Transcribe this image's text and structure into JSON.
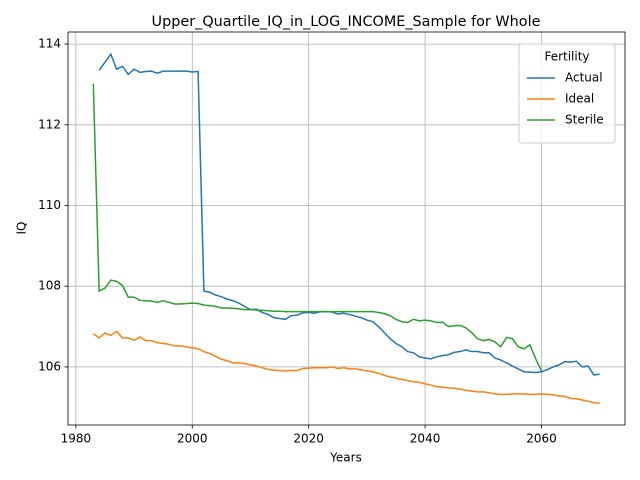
{
  "chart_data": {
    "type": "line",
    "title": "Upper_Quartile_IQ_in_LOG_INCOME_Sample for Whole",
    "x_label": "Years",
    "y_label": "IQ",
    "legend_title": "Fertility",
    "legend": "upper right",
    "grid": true,
    "xlim": [
      1978.65,
      2074.35
    ],
    "ylim": [
      104.56,
      114.3
    ],
    "xticks": [
      1980,
      2000,
      2020,
      2040,
      2060
    ],
    "yticks": [
      106,
      108,
      110,
      112,
      114
    ],
    "x": [
      1983,
      1984,
      1985,
      1986,
      1987,
      1988,
      1989,
      1990,
      1991,
      1992,
      1993,
      1994,
      1995,
      1996,
      1997,
      1998,
      1999,
      2000,
      2001,
      2002,
      2003,
      2004,
      2005,
      2006,
      2007,
      2008,
      2009,
      2010,
      2011,
      2012,
      2013,
      2014,
      2015,
      2016,
      2017,
      2018,
      2019,
      2020,
      2021,
      2022,
      2023,
      2024,
      2025,
      2026,
      2027,
      2028,
      2029,
      2030,
      2031,
      2032,
      2033,
      2034,
      2035,
      2036,
      2037,
      2038,
      2039,
      2040,
      2041,
      2042,
      2043,
      2044,
      2045,
      2046,
      2047,
      2048,
      2049,
      2050,
      2051,
      2052,
      2053,
      2054,
      2055,
      2056,
      2057,
      2058,
      2059,
      2060,
      2061,
      2062,
      2063,
      2064,
      2065,
      2066,
      2067,
      2068,
      2069,
      2070
    ],
    "series": [
      {
        "name": "Actual",
        "color": "#1f77b4",
        "values": [
          null,
          113.35,
          113.55,
          113.75,
          113.38,
          113.45,
          113.25,
          113.38,
          113.3,
          113.32,
          113.33,
          113.28,
          113.33,
          113.33,
          113.33,
          113.33,
          113.33,
          113.31,
          113.32,
          107.88,
          107.85,
          107.78,
          107.74,
          107.68,
          107.64,
          107.58,
          107.5,
          107.42,
          107.43,
          107.35,
          107.3,
          107.22,
          107.2,
          107.18,
          107.27,
          107.28,
          107.34,
          107.35,
          107.33,
          107.37,
          107.37,
          107.36,
          107.31,
          107.33,
          107.3,
          107.26,
          107.22,
          107.16,
          107.12,
          107.0,
          106.85,
          106.7,
          106.58,
          106.5,
          106.38,
          106.35,
          106.25,
          106.22,
          106.2,
          106.25,
          106.28,
          106.3,
          106.36,
          106.38,
          106.42,
          106.38,
          106.38,
          106.35,
          106.35,
          106.22,
          106.17,
          106.1,
          106.02,
          105.95,
          105.88,
          105.87,
          105.86,
          105.88,
          105.93,
          106.0,
          106.05,
          106.13,
          106.12,
          106.14,
          106.0,
          106.02,
          105.8,
          105.82
        ]
      },
      {
        "name": "Ideal",
        "color": "#ff7f0e",
        "values": [
          106.82,
          106.72,
          106.84,
          106.78,
          106.88,
          106.72,
          106.72,
          106.66,
          106.74,
          106.65,
          106.65,
          106.6,
          106.58,
          106.56,
          106.52,
          106.52,
          106.5,
          106.47,
          106.45,
          106.38,
          106.33,
          106.26,
          106.19,
          106.15,
          106.1,
          106.1,
          106.08,
          106.05,
          106.02,
          105.98,
          105.94,
          105.92,
          105.91,
          105.9,
          105.91,
          105.91,
          105.96,
          105.97,
          105.98,
          105.98,
          105.98,
          106.0,
          105.96,
          105.98,
          105.95,
          105.95,
          105.93,
          105.9,
          105.88,
          105.84,
          105.79,
          105.75,
          105.72,
          105.69,
          105.66,
          105.63,
          105.62,
          105.58,
          105.55,
          105.51,
          105.5,
          105.48,
          105.47,
          105.45,
          105.42,
          105.4,
          105.38,
          105.38,
          105.36,
          105.33,
          105.32,
          105.32,
          105.33,
          105.33,
          105.33,
          105.32,
          105.32,
          105.33,
          105.32,
          105.31,
          105.28,
          105.27,
          105.22,
          105.21,
          105.18,
          105.15,
          105.11,
          105.1
        ]
      },
      {
        "name": "Sterile",
        "color": "#2ca02c",
        "values": [
          113.02,
          107.88,
          107.95,
          108.15,
          108.12,
          108.02,
          107.73,
          107.73,
          107.65,
          107.64,
          107.63,
          107.6,
          107.64,
          107.6,
          107.56,
          107.56,
          107.57,
          107.58,
          107.57,
          107.53,
          107.52,
          107.5,
          107.46,
          107.46,
          107.45,
          107.44,
          107.42,
          107.42,
          107.41,
          107.4,
          107.39,
          107.38,
          107.38,
          107.37,
          107.37,
          107.37,
          107.37,
          107.37,
          107.37,
          107.37,
          107.37,
          107.37,
          107.37,
          107.37,
          107.37,
          107.37,
          107.37,
          107.37,
          107.37,
          107.35,
          107.32,
          107.27,
          107.18,
          107.12,
          107.1,
          107.18,
          107.14,
          107.16,
          107.14,
          107.1,
          107.11,
          107.0,
          107.02,
          107.03,
          106.97,
          106.85,
          106.7,
          106.65,
          106.68,
          106.62,
          106.5,
          106.73,
          106.7,
          106.5,
          106.45,
          106.55,
          106.2,
          105.9,
          null,
          null,
          null,
          null,
          null,
          null,
          null,
          null,
          null,
          null
        ]
      }
    ]
  }
}
